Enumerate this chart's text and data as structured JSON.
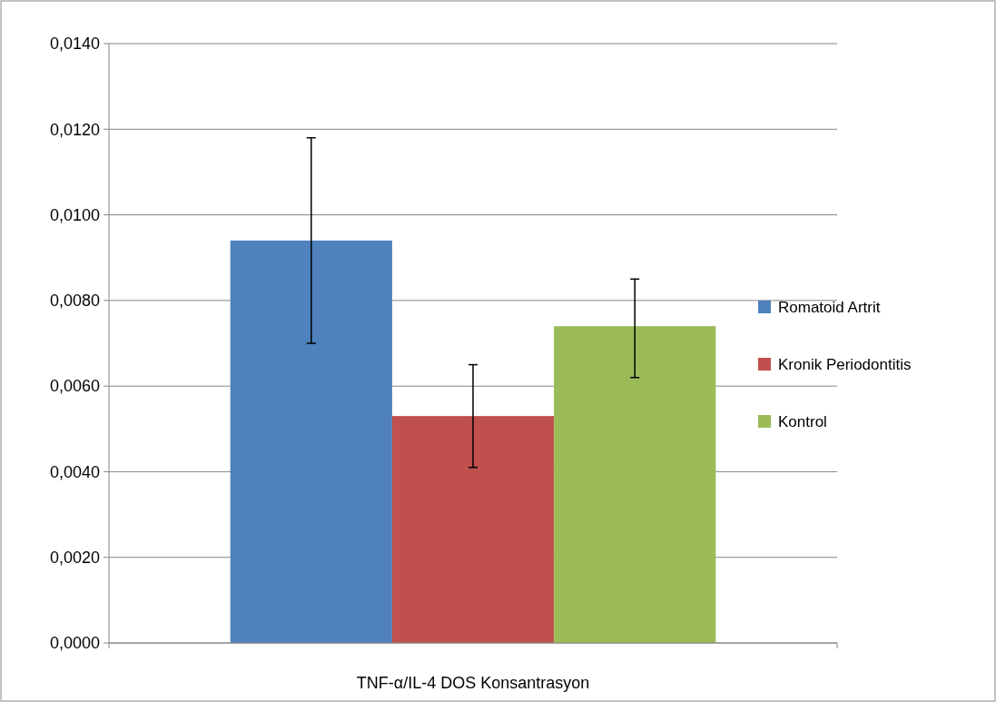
{
  "chart_data": {
    "type": "bar",
    "categories": [
      "TNF-α/IL-4 DOS Konsantrasyon"
    ],
    "series": [
      {
        "name": "Romatoid Artrit",
        "color": "#4f81bd",
        "values": [
          0.0094
        ],
        "errors": [
          [
            0.007,
            0.0118
          ]
        ]
      },
      {
        "name": "Kronik Periodontitis",
        "color": "#c0504d",
        "values": [
          0.0053
        ],
        "errors": [
          [
            0.0041,
            0.0065
          ]
        ]
      },
      {
        "name": "Kontrol",
        "color": "#9bbb59",
        "values": [
          0.0074
        ],
        "errors": [
          [
            0.0062,
            0.0085
          ]
        ]
      }
    ],
    "ylim": [
      0,
      0.014
    ],
    "yticks": [
      {
        "value": 0,
        "label": "0,0000"
      },
      {
        "value": 0.002,
        "label": "0,0020"
      },
      {
        "value": 0.004,
        "label": "0,0040"
      },
      {
        "value": 0.006,
        "label": "0,0060"
      },
      {
        "value": 0.008,
        "label": "0,0080"
      },
      {
        "value": 0.01,
        "label": "0,0100"
      },
      {
        "value": 0.012,
        "label": "0,0120"
      },
      {
        "value": 0.014,
        "label": "0,0140"
      }
    ],
    "grid": "y",
    "legend": "right"
  }
}
